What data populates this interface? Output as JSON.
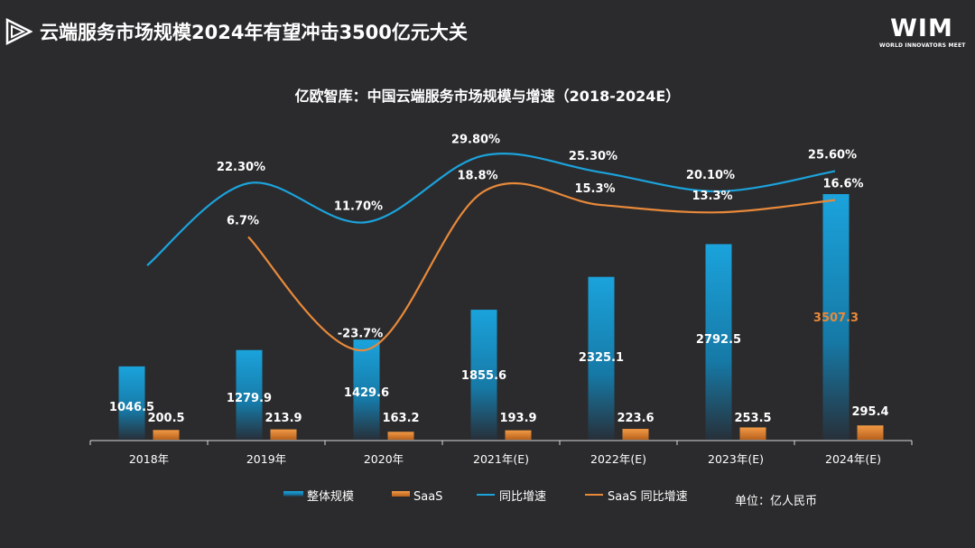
{
  "header": {
    "title": "云端服务市场规模2024年有望冲击3500亿元大关",
    "brand": "WIM",
    "brand_sub": "WORLD INNOVATORS MEET"
  },
  "unit_note": "单位：亿人民币",
  "colors": {
    "background": "#2b2b2d",
    "bar_total": "#1ba3dc",
    "bar_saas": "#e88a2e",
    "line_total": "#1ba3dc",
    "line_saas": "#e8893a",
    "label_highlight": "#e8893a"
  },
  "chart_data": {
    "type": "bar",
    "title": "亿欧智库：中国云端服务市场规模与增速（2018-2024E）",
    "categories": [
      "2018年",
      "2019年",
      "2020年",
      "2021年(E)",
      "2022年(E)",
      "2023年(E)",
      "2024年(E)"
    ],
    "ylim": [
      0,
      4100
    ],
    "series": [
      {
        "name": "整体规模",
        "kind": "bar",
        "values": [
          1046.5,
          1279.9,
          1429.6,
          1855.6,
          2325.1,
          2792.5,
          3507.3
        ],
        "labels": [
          "1046.5",
          "1279.9",
          "1429.6",
          "1855.6",
          "2325.1",
          "2792.5",
          "3507.3"
        ]
      },
      {
        "name": "SaaS",
        "kind": "bar",
        "values": [
          200.5,
          213.9,
          163.2,
          193.9,
          223.6,
          253.5,
          295.4
        ],
        "labels": [
          "200.5",
          "213.9",
          "163.2",
          "193.9",
          "223.6",
          "253.5",
          "295.4"
        ]
      },
      {
        "name": "同比增速",
        "kind": "line",
        "values": [
          null,
          22.3,
          11.7,
          29.8,
          25.3,
          20.1,
          25.6
        ],
        "labels": [
          null,
          "22.30%",
          "11.70%",
          "29.80%",
          "25.30%",
          "20.10%",
          "25.60%"
        ]
      },
      {
        "name": "SaaS 同比增速",
        "kind": "line",
        "values": [
          null,
          6.7,
          -23.7,
          18.8,
          15.3,
          13.3,
          16.6
        ],
        "labels": [
          null,
          "6.7%",
          "-23.7%",
          "18.8%",
          "15.3%",
          "13.3%",
          "16.6%"
        ]
      }
    ],
    "legend": [
      "整体规模",
      "SaaS",
      "同比增速",
      "SaaS 同比增速"
    ],
    "legend_position": "bottom"
  }
}
